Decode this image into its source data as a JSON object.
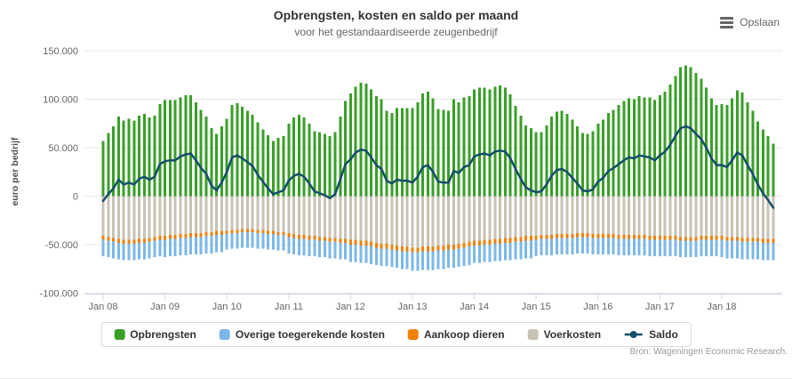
{
  "header": {
    "title": "Opbrengsten, kosten en saldo per maand",
    "subtitle": "voor het gestandaardiseerde zeugenbedrijf"
  },
  "export": {
    "label": "Opslaan",
    "icon": "hamburger-menu-icon"
  },
  "credits": "Bron: Wageningen Economic Research.",
  "chart_data": {
    "type": "bar",
    "subtype": "stacked-columns-with-line-overlay",
    "title": "Opbrengsten, kosten en saldo per maand",
    "subtitle": "voor het gestandaardiseerde zeugenbedrijf",
    "xlabel": "",
    "ylabel": "euro per bedrijf",
    "ylim": [
      -100000,
      150000
    ],
    "grid": "horizontal",
    "legend_position": "bottom",
    "months": {
      "start": "2008-01",
      "end": "2018-11",
      "count": 131
    },
    "x_tick_labels": [
      "Jan 08",
      "Jan 09",
      "Jan 10",
      "Jan 11",
      "Jan 12",
      "Jan 13",
      "Jan 14",
      "Jan 15",
      "Jan 16",
      "Jan 17",
      "Jan 18"
    ],
    "y_grid_values": [
      150000,
      100000,
      50000,
      0,
      -50000,
      -100000
    ],
    "y_ticks": [
      "150.000",
      "100.000",
      "50.000",
      "0",
      "-50.000",
      "-100.000"
    ],
    "stack_order_negative": [
      "Voerkosten",
      "Aankoop dieren",
      "Overige toegerekende kosten"
    ],
    "colors": {
      "grid": "#e6e6e6",
      "axis_line": "#ccd6eb",
      "axis_label": "#666666",
      "axis_title": "#4d4d4d"
    },
    "series": [
      {
        "name": "Opbrengsten",
        "type": "column",
        "direction": "positive",
        "color": "#3a9e28",
        "values_eur": [
          57000,
          65000,
          72000,
          82000,
          78000,
          80000,
          78000,
          83000,
          85000,
          81000,
          83000,
          95000,
          99000,
          99000,
          99000,
          102000,
          104000,
          104000,
          97000,
          89000,
          82000,
          70000,
          64000,
          72000,
          80000,
          94000,
          96000,
          92000,
          88000,
          84000,
          76000,
          69000,
          63000,
          57000,
          60000,
          62000,
          75000,
          81000,
          84000,
          81000,
          75000,
          67000,
          66000,
          64000,
          62000,
          66000,
          82000,
          98000,
          106000,
          113000,
          117000,
          116000,
          110000,
          103000,
          100000,
          88000,
          86000,
          91000,
          91000,
          91000,
          91000,
          97000,
          106000,
          108000,
          101000,
          90000,
          89000,
          88000,
          100000,
          97000,
          102000,
          103000,
          110000,
          112000,
          112000,
          110000,
          113000,
          114000,
          112000,
          105000,
          93000,
          83000,
          73000,
          70000,
          66000,
          66000,
          73000,
          82000,
          87000,
          88000,
          85000,
          79000,
          72000,
          65000,
          64000,
          67000,
          75000,
          79000,
          86000,
          89000,
          94000,
          98000,
          101000,
          100000,
          103000,
          102000,
          102000,
          99000,
          104000,
          108000,
          115000,
          124000,
          133000,
          135000,
          133000,
          127000,
          121000,
          112000,
          101000,
          94000,
          95000,
          94000,
          101000,
          109000,
          107000,
          97000,
          88000,
          77000,
          69000,
          62000,
          54000
        ]
      },
      {
        "name": "Overige toegerekende kosten",
        "type": "column",
        "direction": "negative",
        "color": "#7db7e8",
        "values_eur": [
          -17000,
          -17000,
          -17000,
          -17000,
          -17000,
          -17000,
          -17000,
          -17000,
          -17000,
          -17000,
          -17000,
          -17000,
          -18000,
          -18000,
          -18000,
          -18000,
          -18000,
          -18000,
          -18000,
          -18000,
          -18000,
          -18000,
          -18000,
          -18000,
          -16000,
          -16000,
          -16000,
          -16000,
          -16000,
          -16000,
          -16000,
          -16000,
          -16000,
          -16000,
          -16000,
          -16000,
          -17000,
          -17000,
          -17000,
          -17000,
          -17000,
          -17000,
          -17000,
          -17000,
          -17000,
          -17000,
          -17000,
          -17000,
          -18000,
          -18000,
          -18000,
          -18000,
          -18000,
          -18000,
          -18000,
          -18000,
          -18000,
          -18000,
          -18000,
          -18000,
          -19000,
          -19000,
          -19000,
          -19000,
          -19000,
          -19000,
          -19000,
          -19000,
          -19000,
          -19000,
          -19000,
          -19000,
          -18000,
          -18000,
          -18000,
          -18000,
          -18000,
          -18000,
          -18000,
          -18000,
          -18000,
          -18000,
          -18000,
          -18000,
          -17000,
          -17000,
          -17000,
          -17000,
          -17000,
          -17000,
          -17000,
          -17000,
          -17000,
          -17000,
          -17000,
          -17000,
          -17000,
          -17000,
          -17000,
          -17000,
          -17000,
          -17000,
          -17000,
          -17000,
          -17000,
          -17000,
          -17000,
          -17000,
          -17000,
          -17000,
          -17000,
          -17000,
          -17000,
          -17000,
          -17000,
          -17000,
          -17000,
          -17000,
          -17000,
          -17000,
          -18000,
          -18000,
          -18000,
          -18000,
          -18000,
          -18000,
          -18000,
          -18000,
          -18000,
          -18000,
          -18000
        ]
      },
      {
        "name": "Aankoop dieren",
        "type": "column",
        "direction": "negative",
        "color": "#ef8108",
        "values_eur": [
          -4000,
          -4000,
          -4000,
          -4000,
          -4000,
          -4000,
          -4000,
          -4000,
          -4000,
          -4000,
          -4000,
          -4000,
          -4000,
          -4000,
          -4000,
          -4000,
          -4000,
          -4000,
          -4000,
          -4000,
          -4000,
          -4000,
          -4000,
          -4000,
          -3000,
          -3000,
          -3000,
          -3000,
          -3000,
          -3000,
          -3000,
          -3000,
          -3000,
          -3000,
          -3000,
          -3000,
          -4000,
          -4000,
          -4000,
          -4000,
          -4000,
          -4000,
          -4000,
          -4000,
          -4000,
          -4000,
          -4000,
          -4000,
          -5000,
          -5000,
          -5000,
          -5000,
          -5000,
          -5000,
          -5000,
          -5000,
          -5000,
          -5000,
          -5000,
          -5000,
          -5000,
          -5000,
          -5000,
          -5000,
          -5000,
          -5000,
          -5000,
          -5000,
          -5000,
          -5000,
          -5000,
          -5000,
          -5000,
          -5000,
          -5000,
          -5000,
          -5000,
          -5000,
          -5000,
          -5000,
          -5000,
          -5000,
          -5000,
          -5000,
          -4000,
          -4000,
          -4000,
          -4000,
          -4000,
          -4000,
          -4000,
          -4000,
          -4000,
          -4000,
          -4000,
          -4000,
          -4000,
          -4000,
          -4000,
          -4000,
          -4000,
          -4000,
          -4000,
          -4000,
          -4000,
          -4000,
          -4000,
          -4000,
          -4000,
          -4000,
          -4000,
          -4000,
          -4000,
          -4000,
          -4000,
          -4000,
          -4000,
          -4000,
          -4000,
          -4000,
          -4000,
          -4000,
          -4000,
          -4000,
          -4000,
          -4000,
          -4000,
          -4000,
          -4000,
          -4000,
          -4000
        ]
      },
      {
        "name": "Voerkosten",
        "type": "column",
        "direction": "negative",
        "color": "#c8c3b5",
        "values_eur": [
          -41000,
          -42000,
          -43000,
          -44000,
          -45000,
          -45000,
          -45000,
          -44000,
          -44000,
          -43000,
          -42000,
          -41000,
          -41000,
          -40000,
          -40000,
          -39000,
          -39000,
          -38000,
          -38000,
          -38000,
          -37000,
          -37000,
          -36000,
          -36000,
          -36000,
          -35000,
          -35000,
          -34000,
          -34000,
          -34000,
          -35000,
          -35000,
          -36000,
          -36000,
          -37000,
          -37000,
          -38000,
          -39000,
          -40000,
          -40000,
          -41000,
          -41000,
          -42000,
          -42000,
          -43000,
          -43000,
          -44000,
          -44000,
          -45000,
          -45000,
          -46000,
          -46000,
          -47000,
          -48000,
          -49000,
          -49000,
          -50000,
          -51000,
          -52000,
          -52000,
          -53000,
          -53000,
          -52000,
          -52000,
          -52000,
          -51000,
          -51000,
          -50000,
          -50000,
          -49000,
          -48000,
          -47000,
          -46000,
          -46000,
          -45000,
          -45000,
          -44000,
          -44000,
          -43000,
          -43000,
          -42000,
          -42000,
          -41000,
          -41000,
          -41000,
          -40000,
          -40000,
          -40000,
          -39000,
          -39000,
          -39000,
          -39000,
          -38000,
          -38000,
          -38000,
          -39000,
          -39000,
          -39000,
          -39000,
          -39000,
          -40000,
          -40000,
          -40000,
          -40000,
          -40000,
          -40000,
          -41000,
          -41000,
          -41000,
          -41000,
          -41000,
          -41000,
          -42000,
          -42000,
          -42000,
          -42000,
          -41000,
          -41000,
          -41000,
          -41000,
          -41000,
          -42000,
          -42000,
          -42000,
          -43000,
          -43000,
          -43000,
          -43000,
          -44000,
          -44000,
          -44000
        ]
      },
      {
        "name": "Saldo",
        "type": "line",
        "color": "#134f68",
        "values_eur": [
          -5000,
          2000,
          8000,
          17000,
          12000,
          14000,
          12000,
          18000,
          20000,
          17000,
          20000,
          33000,
          36000,
          37000,
          37000,
          41000,
          43000,
          44000,
          37000,
          29000,
          23000,
          11000,
          6000,
          14000,
          25000,
          40000,
          42000,
          39000,
          35000,
          31000,
          22000,
          15000,
          8000,
          2000,
          4000,
          6000,
          16000,
          21000,
          23000,
          20000,
          13000,
          5000,
          3000,
          1000,
          -2000,
          2000,
          17000,
          33000,
          38000,
          45000,
          48000,
          47000,
          40000,
          32000,
          28000,
          16000,
          13000,
          17000,
          16000,
          16000,
          14000,
          20000,
          30000,
          32000,
          25000,
          15000,
          14000,
          14000,
          26000,
          24000,
          30000,
          32000,
          41000,
          43000,
          44000,
          42000,
          46000,
          47000,
          46000,
          39000,
          28000,
          18000,
          9000,
          6000,
          4000,
          5000,
          12000,
          21000,
          27000,
          28000,
          25000,
          19000,
          13000,
          6000,
          5000,
          7000,
          15000,
          19000,
          26000,
          29000,
          33000,
          37000,
          40000,
          39000,
          42000,
          41000,
          40000,
          37000,
          42000,
          46000,
          53000,
          62000,
          70000,
          72000,
          70000,
          64000,
          59000,
          50000,
          39000,
          32000,
          32000,
          30000,
          37000,
          45000,
          42000,
          32000,
          23000,
          12000,
          3000,
          -4000,
          -12000
        ]
      }
    ]
  }
}
